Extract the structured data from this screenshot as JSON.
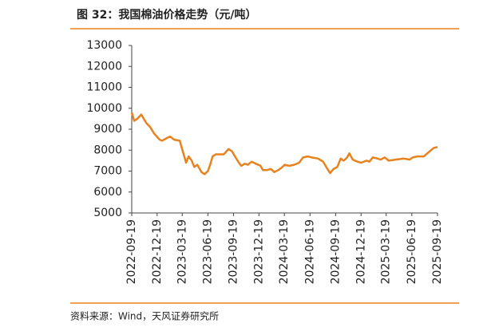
{
  "chart_data": {
    "type": "line",
    "title": "图 32：我国棉油价格走势（元/吨）",
    "source": "资料来源：Wind，天风证券研究所",
    "x": [
      "2022-09-19",
      "2022-09-28",
      "2022-10-09",
      "2022-10-23",
      "2022-11-10",
      "2022-11-24",
      "2022-12-08",
      "2022-12-28",
      "2023-01-06",
      "2023-01-26",
      "2023-02-04",
      "2023-02-18",
      "2023-03-10",
      "2023-03-22",
      "2023-04-02",
      "2023-04-11",
      "2023-04-22",
      "2023-05-01",
      "2023-05-12",
      "2023-05-27",
      "2023-06-07",
      "2023-06-19",
      "2023-06-27",
      "2023-07-06",
      "2023-07-17",
      "2023-08-15",
      "2023-09-01",
      "2023-09-13",
      "2023-09-24",
      "2023-10-08",
      "2023-10-17",
      "2023-10-29",
      "2023-11-09",
      "2023-11-23",
      "2023-12-08",
      "2023-12-25",
      "2024-01-02",
      "2024-01-17",
      "2024-01-31",
      "2024-02-12",
      "2024-02-26",
      "2024-03-08",
      "2024-03-20",
      "2024-04-06",
      "2024-04-23",
      "2024-05-11",
      "2024-05-25",
      "2024-06-11",
      "2024-06-25",
      "2024-07-18",
      "2024-08-05",
      "2024-08-16",
      "2024-08-30",
      "2024-09-11",
      "2024-09-25",
      "2024-10-07",
      "2024-10-18",
      "2024-10-30",
      "2024-11-07",
      "2024-11-19",
      "2024-12-06",
      "2024-12-20",
      "2025-01-07",
      "2025-01-18",
      "2025-01-30",
      "2025-02-16",
      "2025-02-27",
      "2025-03-14",
      "2025-03-28",
      "2025-04-23",
      "2025-05-21",
      "2025-06-11",
      "2025-06-22",
      "2025-07-09",
      "2025-08-01",
      "2025-08-18",
      "2025-09-05",
      "2025-09-19"
    ],
    "series": [
      {
        "color": "#e8821e",
        "values": [
          9800,
          9400,
          9500,
          9700,
          9300,
          9100,
          8800,
          8500,
          8450,
          8600,
          8650,
          8500,
          8450,
          7900,
          7400,
          7700,
          7500,
          7200,
          7300,
          6950,
          6850,
          7000,
          7300,
          7700,
          7800,
          7800,
          8050,
          7950,
          7700,
          7400,
          7250,
          7350,
          7300,
          7450,
          7350,
          7250,
          7050,
          7050,
          7100,
          6950,
          7050,
          7150,
          7300,
          7250,
          7300,
          7400,
          7650,
          7700,
          7650,
          7600,
          7450,
          7200,
          6900,
          7100,
          7200,
          7600,
          7500,
          7650,
          7850,
          7550,
          7450,
          7400,
          7500,
          7450,
          7650,
          7600,
          7550,
          7650,
          7500,
          7550,
          7600,
          7550,
          7650,
          7700,
          7700,
          7900,
          8100,
          8150
        ]
      }
    ],
    "xlim": [
      "2022-09-19",
      "2025-09-19"
    ],
    "xticks": [
      "2022-09-19",
      "2022-12-19",
      "2023-03-19",
      "2023-06-19",
      "2023-09-19",
      "2023-12-19",
      "2024-03-19",
      "2024-06-19",
      "2024-09-19",
      "2024-12-19",
      "2025-03-19",
      "2025-06-19",
      "2025-09-19"
    ],
    "ylim": [
      5000,
      13000
    ],
    "yticks": [
      5000,
      6000,
      7000,
      8000,
      9000,
      10000,
      11000,
      12000,
      13000
    ]
  }
}
